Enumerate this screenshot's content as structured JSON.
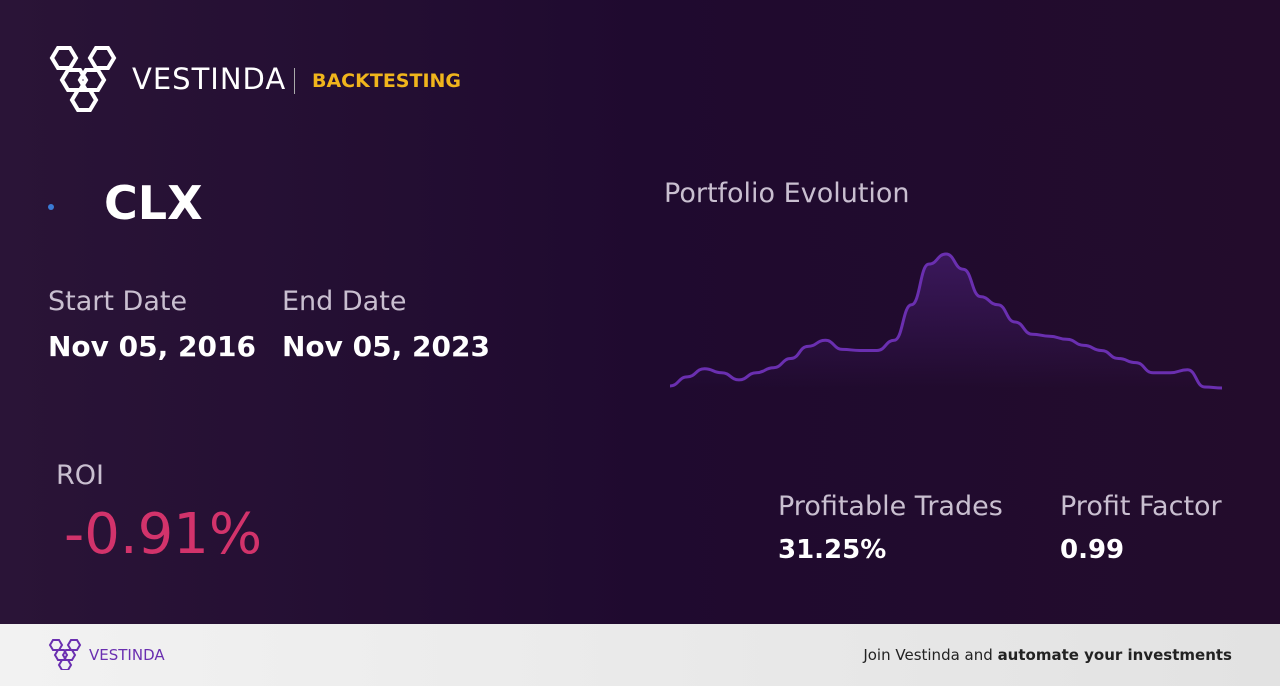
{
  "header": {
    "brand": "VESTINDA",
    "section": "BACKTESTING"
  },
  "ticker": "CLX",
  "start_date": {
    "label": "Start Date",
    "value": "Nov 05, 2016"
  },
  "end_date": {
    "label": "End Date",
    "value": "Nov 05, 2023"
  },
  "roi": {
    "label": "ROI",
    "value": "-0.91%"
  },
  "chart_data": {
    "type": "line",
    "title": "Portfolio Evolution",
    "color": "#6a2fb0",
    "values": [
      5,
      14,
      22,
      18,
      11,
      18,
      23,
      32,
      44,
      50,
      41,
      40,
      40,
      50,
      85,
      125,
      135,
      120,
      93,
      85,
      68,
      56,
      54,
      51,
      45,
      40,
      32,
      28,
      18,
      18,
      21,
      4,
      3
    ]
  },
  "stats": [
    {
      "label": "Profitable Trades",
      "value": "31.25%"
    },
    {
      "label": "Profit Factor",
      "value": "0.99"
    }
  ],
  "footer": {
    "brand": "VESTINDA",
    "cta_prefix": "Join Vestinda and",
    "cta_bold": "automate your investments"
  }
}
